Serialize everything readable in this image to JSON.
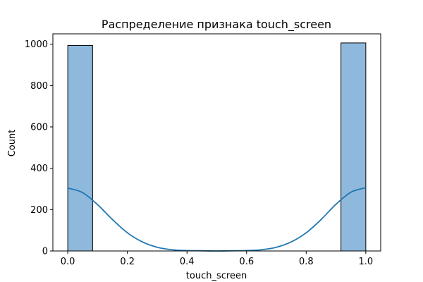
{
  "chart_data": {
    "type": "histogram",
    "title": "Распределение признака touch_screen",
    "xlabel": "touch_screen",
    "ylabel": "Count",
    "xlim": [
      -0.05,
      1.05
    ],
    "ylim": [
      0,
      1050
    ],
    "xticks": [
      0.0,
      0.2,
      0.4,
      0.6,
      0.8,
      1.0
    ],
    "xtick_labels": [
      "0.0",
      "0.2",
      "0.4",
      "0.6",
      "0.8",
      "1.0"
    ],
    "yticks": [
      0,
      200,
      400,
      600,
      800,
      1000
    ],
    "ytick_labels": [
      "0",
      "200",
      "400",
      "600",
      "800",
      "1000"
    ],
    "bins": [
      {
        "x0": 0.0,
        "x1": 0.0833,
        "count": 994
      },
      {
        "x0": 0.9167,
        "x1": 1.0,
        "count": 1006
      }
    ],
    "kde": {
      "x": [
        0.0,
        0.05,
        0.1,
        0.15,
        0.2,
        0.25,
        0.3,
        0.35,
        0.4,
        0.45,
        0.5,
        0.55,
        0.6,
        0.65,
        0.7,
        0.75,
        0.8,
        0.85,
        0.9,
        0.95,
        1.0
      ],
      "y": [
        304,
        282,
        224,
        152,
        88,
        44,
        18,
        6,
        2,
        1,
        0,
        1,
        2,
        6,
        18,
        44,
        88,
        152,
        226,
        284,
        306
      ]
    },
    "colors": {
      "bar_fill": "#8fb9dc",
      "bar_edge": "#000000",
      "kde_line": "#1f77b4"
    },
    "grid": false
  }
}
